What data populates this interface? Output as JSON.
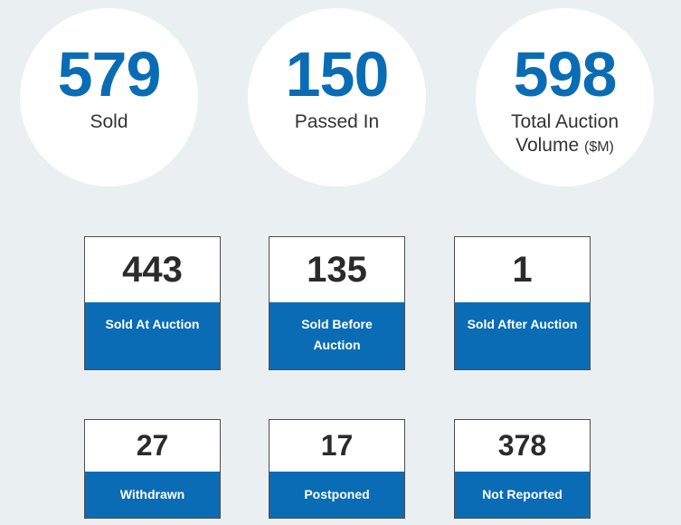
{
  "summary": {
    "sold": {
      "value": "579",
      "label": "Sold"
    },
    "passed_in": {
      "value": "150",
      "label": "Passed In"
    },
    "volume": {
      "value": "598",
      "label_line1": "Total Auction",
      "label_line2": "Volume",
      "unit": "($M)"
    }
  },
  "tiles_row1": [
    {
      "value": "443",
      "label": "Sold At Auction"
    },
    {
      "value": "135",
      "label_line1": "Sold Before",
      "label_line2": "Auction"
    },
    {
      "value": "1",
      "label": "Sold After Auction"
    }
  ],
  "tiles_row2": [
    {
      "value": "27",
      "label": "Withdrawn"
    },
    {
      "value": "17",
      "label": "Postponed"
    },
    {
      "value": "378",
      "label": "Not Reported"
    }
  ],
  "colors": {
    "accent": "#0a6cb4",
    "background": "#eaeff1",
    "text": "#333333"
  }
}
